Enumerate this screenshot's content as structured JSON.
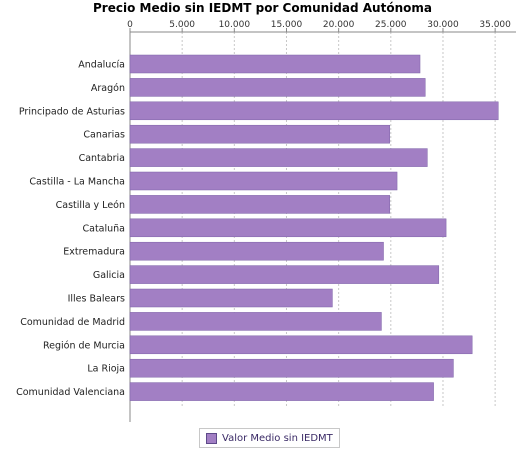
{
  "chart_data": {
    "type": "bar",
    "orientation": "horizontal",
    "title": "Precio Medio sin IEDMT por Comunidad Autónoma",
    "xlabel": "",
    "ylabel": "",
    "xlim": [
      0,
      37000
    ],
    "ticks": [
      "0",
      "5.000",
      "10.000",
      "15.000",
      "20.000",
      "25.000",
      "30.000",
      "35.000"
    ],
    "tick_values": [
      0,
      5000,
      10000,
      15000,
      20000,
      25000,
      30000,
      35000
    ],
    "grid": true,
    "legend_position": "bottom",
    "categories": [
      "Andalucía",
      "Aragón",
      "Principado de Asturias",
      "Canarias",
      "Cantabria",
      "Castilla - La Mancha",
      "Castilla y León",
      "Cataluña",
      "Extremadura",
      "Galicia",
      "Illes Balears",
      "Comunidad de Madrid",
      "Región de Murcia",
      "La Rioja",
      "Comunidad Valenciana"
    ],
    "series": [
      {
        "name": "Valor Medio sin IEDMT",
        "color": "#a27fc4",
        "values": [
          27800,
          28300,
          35300,
          24900,
          28500,
          25600,
          24900,
          30300,
          24300,
          29600,
          19400,
          24100,
          32800,
          31000,
          29100
        ]
      }
    ]
  }
}
